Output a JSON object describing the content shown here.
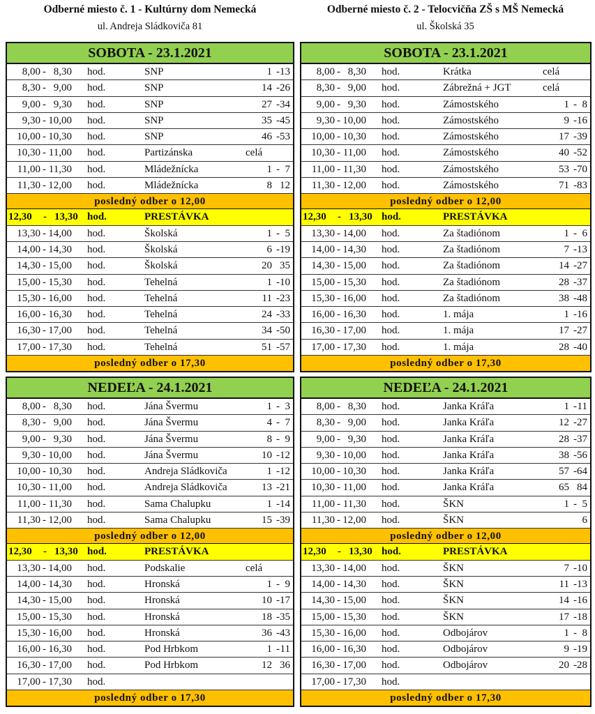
{
  "sites": [
    {
      "title": "Odberné miesto č. 1 - Kultúrny dom Nemecká",
      "address": "ul. Andreja Sládkoviča 81",
      "days": [
        {
          "label": "SOBOTA - 23.1.2021",
          "morning": [
            {
              "from": "8,00",
              "to": "8,30",
              "hod": "hod.",
              "street": "SNP",
              "n_from": "1",
              "n_sep": "-",
              "n_to": "13"
            },
            {
              "from": "8,30",
              "to": "9,00",
              "hod": "hod.",
              "street": "SNP",
              "n_from": "14",
              "n_sep": "-",
              "n_to": "26"
            },
            {
              "from": "9,00",
              "to": "9,30",
              "hod": "hod.",
              "street": "SNP",
              "n_from": "27",
              "n_sep": "-",
              "n_to": "34"
            },
            {
              "from": "9,30",
              "to": "10,00",
              "hod": "hod.",
              "street": "SNP",
              "n_from": "35",
              "n_sep": "-",
              "n_to": "45"
            },
            {
              "from": "10,00",
              "to": "10,30",
              "hod": "hod.",
              "street": "SNP",
              "n_from": "46",
              "n_sep": "-",
              "n_to": "53"
            },
            {
              "from": "10,30",
              "to": "11,00",
              "hod": "hod.",
              "street": "Partizánska",
              "whole": "celá"
            },
            {
              "from": "11,00",
              "to": "11,30",
              "hod": "hod.",
              "street": "Mládežnícka",
              "n_from": "1",
              "n_sep": "-",
              "n_to": "7"
            },
            {
              "from": "11,30",
              "to": "12,00",
              "hod": "hod.",
              "street": "Mládežnícka",
              "n_from": "8",
              "n_sep": "",
              "n_to": "12"
            }
          ],
          "last_morning": "posledný odber o 12,00",
          "break": {
            "from": "12,30",
            "to": "13,30",
            "hod": "hod.",
            "label": "PRESTÁVKA"
          },
          "afternoon": [
            {
              "from": "13,30",
              "to": "14,00",
              "hod": "hod.",
              "street": "Školská",
              "n_from": "1",
              "n_sep": "-",
              "n_to": "5"
            },
            {
              "from": "14,00",
              "to": "14,30",
              "hod": "hod.",
              "street": "Školská",
              "n_from": "6",
              "n_sep": "-",
              "n_to": "19"
            },
            {
              "from": "14,30",
              "to": "15,00",
              "hod": "hod.",
              "street": "Školská",
              "n_from": "20",
              "n_sep": "",
              "n_to": "35"
            },
            {
              "from": "15,00",
              "to": "15,30",
              "hod": "hod.",
              "street": "Tehelná",
              "n_from": "1",
              "n_sep": "-",
              "n_to": "10"
            },
            {
              "from": "15,30",
              "to": "16,00",
              "hod": "hod.",
              "street": "Tehelná",
              "n_from": "11",
              "n_sep": "-",
              "n_to": "23"
            },
            {
              "from": "16,00",
              "to": "16,30",
              "hod": "hod.",
              "street": "Tehelná",
              "n_from": "24",
              "n_sep": "-",
              "n_to": "33"
            },
            {
              "from": "16,30",
              "to": "17,00",
              "hod": "hod.",
              "street": "Tehelná",
              "n_from": "34",
              "n_sep": "-",
              "n_to": "50"
            },
            {
              "from": "17,00",
              "to": "17,30",
              "hod": "hod.",
              "street": "Tehelná",
              "n_from": "51",
              "n_sep": "-",
              "n_to": "57"
            }
          ],
          "last_afternoon": "posledný odber o 17,30"
        },
        {
          "label": "NEDEĽA - 24.1.2021",
          "morning": [
            {
              "from": "8,00",
              "to": "8,30",
              "hod": "hod.",
              "street": "Jána Švermu",
              "n_from": "1",
              "n_sep": "-",
              "n_to": "3"
            },
            {
              "from": "8,30",
              "to": "9,00",
              "hod": "hod.",
              "street": "Jána Švermu",
              "n_from": "4",
              "n_sep": "-",
              "n_to": "7"
            },
            {
              "from": "9,00",
              "to": "9,30",
              "hod": "hod.",
              "street": "Jána Švermu",
              "n_from": "8",
              "n_sep": "-",
              "n_to": "9"
            },
            {
              "from": "9,30",
              "to": "10,00",
              "hod": "hod.",
              "street": "Jána Švermu",
              "n_from": "10",
              "n_sep": "-",
              "n_to": "12"
            },
            {
              "from": "10,00",
              "to": "10,30",
              "hod": "hod.",
              "street": "Andreja Sládkoviča",
              "n_from": "1",
              "n_sep": "-",
              "n_to": "12"
            },
            {
              "from": "10,30",
              "to": "11,00",
              "hod": "hod.",
              "street": "Andreja Sládkoviča",
              "n_from": "13",
              "n_sep": "-",
              "n_to": "21"
            },
            {
              "from": "11,00",
              "to": "11,30",
              "hod": "hod.",
              "street": "Sama Chalupku",
              "n_from": "1",
              "n_sep": "-",
              "n_to": "14"
            },
            {
              "from": "11,30",
              "to": "12,00",
              "hod": "hod.",
              "street": "Sama Chalupku",
              "n_from": "15",
              "n_sep": "-",
              "n_to": "39"
            }
          ],
          "last_morning": "posledný odber o 12,00",
          "break": {
            "from": "12,30",
            "to": "13,30",
            "hod": "hod.",
            "label": "PRESTÁVKA"
          },
          "afternoon": [
            {
              "from": "13,30",
              "to": "14,00",
              "hod": "hod.",
              "street": "Podskalie",
              "whole": "celá"
            },
            {
              "from": "14,00",
              "to": "14,30",
              "hod": "hod.",
              "street": "Hronská",
              "n_from": "1",
              "n_sep": "-",
              "n_to": "9"
            },
            {
              "from": "14,30",
              "to": "15,00",
              "hod": "hod.",
              "street": "Hronská",
              "n_from": "10",
              "n_sep": "-",
              "n_to": "17"
            },
            {
              "from": "15,00",
              "to": "15,30",
              "hod": "hod.",
              "street": "Hronská",
              "n_from": "18",
              "n_sep": "-",
              "n_to": "35"
            },
            {
              "from": "15,30",
              "to": "16,00",
              "hod": "hod.",
              "street": "Hronská",
              "n_from": "36",
              "n_sep": "-",
              "n_to": "43"
            },
            {
              "from": "16,00",
              "to": "16,30",
              "hod": "hod.",
              "street": "Pod Hrbkom",
              "n_from": "1",
              "n_sep": "-",
              "n_to": "11"
            },
            {
              "from": "16,30",
              "to": "17,00",
              "hod": "hod.",
              "street": "Pod Hrbkom",
              "n_from": "12",
              "n_sep": "",
              "n_to": "36"
            },
            {
              "from": "17,00",
              "to": "17,30",
              "hod": "hod."
            }
          ],
          "last_afternoon": "posledný odber o 17,30"
        }
      ]
    },
    {
      "title": "Odberné miesto č. 2 - Telocvičňa ZŠ s MŠ Nemecká",
      "address": "ul. Školská 35",
      "days": [
        {
          "label": "SOBOTA - 23.1.2021",
          "morning": [
            {
              "from": "8,00",
              "to": "8,30",
              "hod": "hod.",
              "street": "Krátka",
              "whole": "celá"
            },
            {
              "from": "8,30",
              "to": "9,00",
              "hod": "hod.",
              "street": "Zábrežná + JGT",
              "whole": "celá"
            },
            {
              "from": "9,00",
              "to": "9,30",
              "hod": "hod.",
              "street": "Zámostského",
              "n_from": "1",
              "n_sep": "-",
              "n_to": "8"
            },
            {
              "from": "9,30",
              "to": "10,00",
              "hod": "hod.",
              "street": "Zámostského",
              "n_from": "9",
              "n_sep": "-",
              "n_to": "16"
            },
            {
              "from": "10,00",
              "to": "10,30",
              "hod": "hod.",
              "street": "Zámostského",
              "n_from": "17",
              "n_sep": "-",
              "n_to": "39"
            },
            {
              "from": "10,30",
              "to": "11,00",
              "hod": "hod.",
              "street": "Zámostského",
              "n_from": "40",
              "n_sep": "-",
              "n_to": "52"
            },
            {
              "from": "11,00",
              "to": "11,30",
              "hod": "hod.",
              "street": "Zámostského",
              "n_from": "53",
              "n_sep": "-",
              "n_to": "70"
            },
            {
              "from": "11,30",
              "to": "12,00",
              "hod": "hod.",
              "street": "Zámostského",
              "n_from": "71",
              "n_sep": "-",
              "n_to": "83"
            }
          ],
          "last_morning": "posledný odber o 12,00",
          "break": {
            "from": "12,30",
            "to": "13,30",
            "hod": "hod.",
            "label": "PRESTÁVKA"
          },
          "afternoon": [
            {
              "from": "13,30",
              "to": "14,00",
              "hod": "hod.",
              "street": "Za štadiónom",
              "n_from": "1",
              "n_sep": "-",
              "n_to": "6"
            },
            {
              "from": "14,00",
              "to": "14,30",
              "hod": "hod.",
              "street": "Za štadiónom",
              "n_from": "7",
              "n_sep": "-",
              "n_to": "13"
            },
            {
              "from": "14,30",
              "to": "15,00",
              "hod": "hod.",
              "street": "Za štadiónom",
              "n_from": "14",
              "n_sep": "-",
              "n_to": "27"
            },
            {
              "from": "15,00",
              "to": "15,30",
              "hod": "hod.",
              "street": "Za štadiónom",
              "n_from": "28",
              "n_sep": "-",
              "n_to": "37"
            },
            {
              "from": "15,30",
              "to": "16,00",
              "hod": "hod.",
              "street": "Za štadiónom",
              "n_from": "38",
              "n_sep": "-",
              "n_to": "48"
            },
            {
              "from": "16,00",
              "to": "16,30",
              "hod": "hod.",
              "street": "1. mája",
              "n_from": "1",
              "n_sep": "-",
              "n_to": "16"
            },
            {
              "from": "16,30",
              "to": "17,00",
              "hod": "hod.",
              "street": "1. mája",
              "n_from": "17",
              "n_sep": "-",
              "n_to": "27"
            },
            {
              "from": "17,00",
              "to": "17,30",
              "hod": "hod.",
              "street": "1. mája",
              "n_from": "28",
              "n_sep": "-",
              "n_to": "40"
            }
          ],
          "last_afternoon": "posledný odber o 17,30"
        },
        {
          "label": "NEDEĽA - 24.1.2021",
          "morning": [
            {
              "from": "8,00",
              "to": "8,30",
              "hod": "hod.",
              "street": "Janka Kráľa",
              "n_from": "1",
              "n_sep": "-",
              "n_to": "11"
            },
            {
              "from": "8,30",
              "to": "9,00",
              "hod": "hod.",
              "street": "Janka Kráľa",
              "n_from": "12",
              "n_sep": "-",
              "n_to": "27"
            },
            {
              "from": "9,00",
              "to": "9,30",
              "hod": "hod.",
              "street": "Janka Kráľa",
              "n_from": "28",
              "n_sep": "-",
              "n_to": "37"
            },
            {
              "from": "9,30",
              "to": "10,00",
              "hod": "hod.",
              "street": "Janka Kráľa",
              "n_from": "38",
              "n_sep": "-",
              "n_to": "56"
            },
            {
              "from": "10,00",
              "to": "10,30",
              "hod": "hod.",
              "street": "Janka Kráľa",
              "n_from": "57",
              "n_sep": "-",
              "n_to": "64"
            },
            {
              "from": "10,30",
              "to": "11,00",
              "hod": "hod.",
              "street": "Janka Kráľa",
              "n_from": "65",
              "n_sep": "",
              "n_to": "84"
            },
            {
              "from": "11,00",
              "to": "11,30",
              "hod": "hod.",
              "street": "ŠKN",
              "n_from": "1",
              "n_sep": "-",
              "n_to": "5"
            },
            {
              "from": "11,30",
              "to": "12,00",
              "hod": "hod.",
              "street": "ŠKN",
              "n_from": "",
              "n_sep": "",
              "n_to": "6"
            }
          ],
          "last_morning": "posledný odber o 12,00",
          "break": {
            "from": "12,30",
            "to": "13,30",
            "hod": "hod.",
            "label": "PRESTÁVKA"
          },
          "afternoon": [
            {
              "from": "13,30",
              "to": "14,00",
              "hod": "hod.",
              "street": "ŠKN",
              "n_from": "7",
              "n_sep": "-",
              "n_to": "10"
            },
            {
              "from": "14,00",
              "to": "14,30",
              "hod": "hod.",
              "street": "ŠKN",
              "n_from": "11",
              "n_sep": "-",
              "n_to": "13"
            },
            {
              "from": "14,30",
              "to": "15,00",
              "hod": "hod.",
              "street": "ŠKN",
              "n_from": "14",
              "n_sep": "-",
              "n_to": "16"
            },
            {
              "from": "15,00",
              "to": "15,30",
              "hod": "hod.",
              "street": "ŠKN",
              "n_from": "17",
              "n_sep": "-",
              "n_to": "18"
            },
            {
              "from": "15,30",
              "to": "16,00",
              "hod": "hod.",
              "street": "Odbojárov",
              "n_from": "1",
              "n_sep": "-",
              "n_to": "8"
            },
            {
              "from": "16,00",
              "to": "16,30",
              "hod": "hod.",
              "street": "Odbojárov",
              "n_from": "9",
              "n_sep": "-",
              "n_to": "19"
            },
            {
              "from": "16,30",
              "to": "17,00",
              "hod": "hod.",
              "street": "Odbojárov",
              "n_from": "20",
              "n_sep": "-",
              "n_to": "28"
            },
            {
              "from": "17,00",
              "to": "17,30",
              "hod": "hod."
            }
          ],
          "last_afternoon": "posledný odber o 17,30"
        }
      ]
    }
  ],
  "colors": {
    "day_header": "#92d050",
    "last_collection": "#ffc000",
    "break": "#ffff00"
  }
}
